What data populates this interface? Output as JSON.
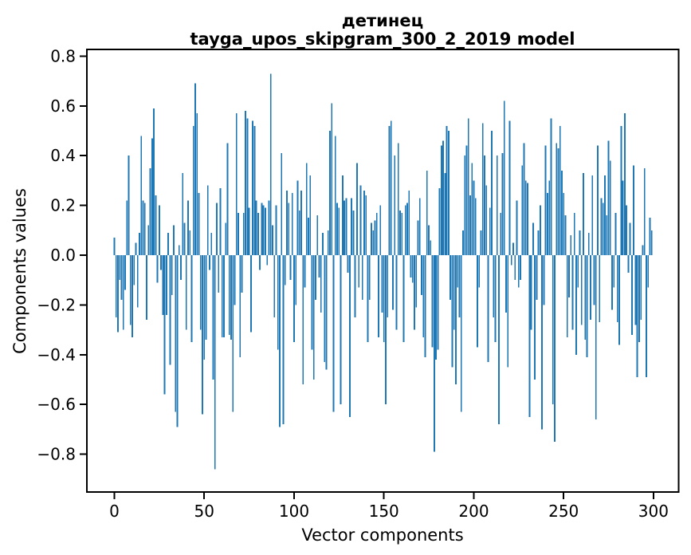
{
  "title": {
    "line1": "детинец",
    "line2": "tayga_upos_skipgram_300_2_2019 model"
  },
  "axes": {
    "xlabel": "Vector components",
    "ylabel": "Components values"
  },
  "colors": {
    "bar": "#1f77b4",
    "axis": "#000000",
    "background": "#ffffff"
  },
  "chart_data": {
    "type": "bar",
    "title": "детинец\ntayga_upos_skipgram_300_2_2019 model",
    "xlabel": "Vector components",
    "ylabel": "Components values",
    "x_ticks": [
      0,
      50,
      100,
      150,
      200,
      250,
      300
    ],
    "x_tick_labels": [
      "0",
      "50",
      "100",
      "150",
      "200",
      "250",
      "300"
    ],
    "y_ticks": [
      0.8,
      0.6,
      0.4,
      0.2,
      0.0,
      -0.2,
      -0.4,
      -0.6,
      -0.8
    ],
    "y_tick_labels": [
      "0.8",
      "0.6",
      "0.4",
      "0.2",
      "0.0",
      "−0.2",
      "−0.4",
      "−0.6",
      "−0.8"
    ],
    "xlim": [
      -15.3,
      314.0
    ],
    "ylim": [
      -0.952,
      0.827
    ],
    "grid": false,
    "legend": null,
    "bar_width": 0.8,
    "bar_color": "#1f77b4",
    "x_start": 0,
    "values": [
      0.07,
      -0.25,
      -0.31,
      -0.1,
      -0.18,
      -0.3,
      -0.14,
      0.22,
      0.4,
      -0.28,
      -0.33,
      -0.12,
      0.05,
      -0.21,
      0.09,
      0.48,
      0.22,
      0.21,
      -0.26,
      0.12,
      0.35,
      0.47,
      0.59,
      0.24,
      -0.11,
      0.2,
      -0.06,
      -0.24,
      -0.56,
      -0.24,
      0.09,
      -0.44,
      -0.16,
      0.12,
      -0.63,
      -0.69,
      0.04,
      -0.1,
      0.33,
      0.13,
      -0.3,
      0.22,
      0.1,
      -0.35,
      0.52,
      0.69,
      0.57,
      0.25,
      -0.3,
      -0.64,
      -0.42,
      -0.34,
      0.28,
      -0.06,
      0.09,
      -0.5,
      -0.86,
      0.21,
      -0.15,
      0.27,
      -0.33,
      -0.33,
      0.13,
      0.45,
      -0.32,
      -0.34,
      -0.63,
      -0.2,
      0.57,
      0.17,
      -0.41,
      -0.15,
      0.17,
      0.58,
      0.55,
      0.19,
      -0.31,
      0.54,
      0.52,
      0.22,
      0.17,
      -0.06,
      0.21,
      0.2,
      0.19,
      -0.04,
      0.22,
      0.73,
      0.12,
      -0.25,
      0.2,
      -0.38,
      -0.69,
      0.41,
      -0.68,
      -0.12,
      0.26,
      0.21,
      -0.1,
      0.25,
      -0.35,
      -0.2,
      0.3,
      0.18,
      0.26,
      -0.52,
      -0.13,
      0.37,
      0.15,
      0.32,
      -0.38,
      -0.5,
      -0.18,
      0.16,
      -0.09,
      -0.23,
      0.09,
      -0.43,
      -0.46,
      0.1,
      0.5,
      0.61,
      -0.63,
      0.48,
      0.21,
      0.19,
      -0.6,
      0.32,
      0.22,
      0.23,
      -0.07,
      -0.65,
      0.23,
      0.18,
      -0.25,
      0.37,
      -0.13,
      0.28,
      -0.18,
      0.26,
      0.24,
      -0.35,
      -0.18,
      0.13,
      0.1,
      0.14,
      0.17,
      -0.33,
      0.2,
      -0.23,
      -0.35,
      -0.6,
      -0.25,
      0.52,
      0.54,
      -0.22,
      0.4,
      -0.3,
      0.45,
      0.18,
      0.17,
      -0.35,
      0.2,
      0.21,
      0.26,
      -0.09,
      -0.11,
      -0.3,
      -0.21,
      0.14,
      0.23,
      -0.16,
      -0.33,
      -0.41,
      0.34,
      0.12,
      0.06,
      -0.37,
      -0.79,
      -0.42,
      -0.38,
      0.27,
      0.44,
      0.46,
      0.33,
      0.52,
      0.5,
      -0.18,
      -0.45,
      -0.3,
      -0.52,
      -0.13,
      -0.25,
      -0.63,
      0.1,
      0.4,
      0.44,
      0.55,
      0.24,
      0.37,
      0.3,
      0.23,
      -0.37,
      -0.13,
      0.1,
      0.53,
      0.4,
      0.28,
      -0.43,
      0.19,
      0.5,
      -0.25,
      -0.35,
      0.4,
      -0.68,
      0.17,
      0.41,
      0.62,
      -0.23,
      -0.45,
      0.54,
      -0.04,
      0.05,
      -0.1,
      0.22,
      -0.13,
      -0.1,
      0.36,
      0.45,
      0.3,
      0.29,
      -0.65,
      -0.3,
      0.13,
      -0.5,
      -0.18,
      0.1,
      0.2,
      -0.7,
      -0.2,
      0.44,
      0.25,
      0.3,
      0.55,
      -0.6,
      -0.75,
      0.45,
      0.43,
      0.52,
      0.34,
      0.25,
      0.16,
      -0.33,
      -0.17,
      0.08,
      -0.3,
      0.17,
      -0.4,
      -0.13,
      0.1,
      -0.28,
      0.33,
      -0.34,
      -0.41,
      0.09,
      -0.26,
      0.32,
      -0.2,
      -0.66,
      0.44,
      -0.27,
      0.23,
      0.21,
      0.32,
      0.16,
      0.46,
      0.38,
      -0.22,
      -0.13,
      0.17,
      -0.27,
      -0.36,
      0.52,
      0.3,
      0.57,
      0.2,
      -0.07,
      0.13,
      -0.32,
      0.36,
      -0.28,
      -0.49,
      -0.35,
      -0.26,
      0.04,
      0.35,
      -0.49,
      -0.13,
      0.15,
      0.1
    ]
  }
}
